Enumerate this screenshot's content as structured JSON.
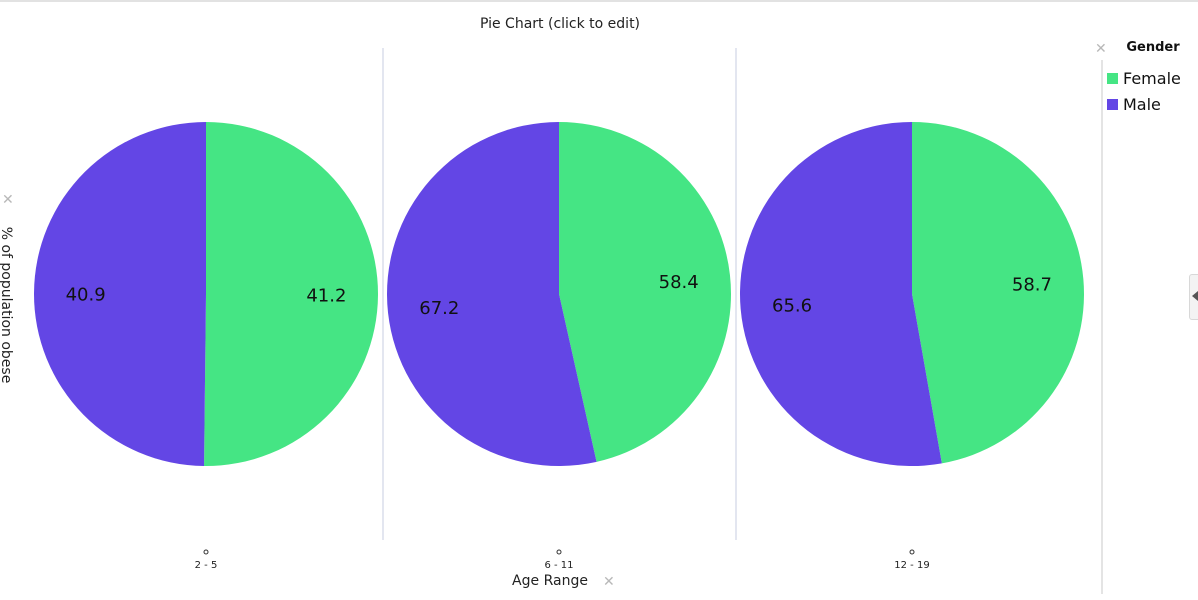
{
  "chart_data": {
    "type": "pie",
    "title": "Pie Chart (click to edit)",
    "xlabel": "Age Range",
    "ylabel": "% of population obese",
    "legend_title": "Gender",
    "legend_position": "right",
    "series": [
      {
        "name": "Female",
        "color": "#45e584"
      },
      {
        "name": "Male",
        "color": "#6346e5"
      }
    ],
    "pies": [
      {
        "category": "2 - 5",
        "values": {
          "Female": 41.2,
          "Male": 40.9
        }
      },
      {
        "category": "6 - 11",
        "values": {
          "Female": 58.4,
          "Male": 67.2
        }
      },
      {
        "category": "12 - 19",
        "values": {
          "Female": 58.7,
          "Male": 65.6
        }
      }
    ]
  },
  "controls": {
    "remove_symbol": "✕"
  }
}
